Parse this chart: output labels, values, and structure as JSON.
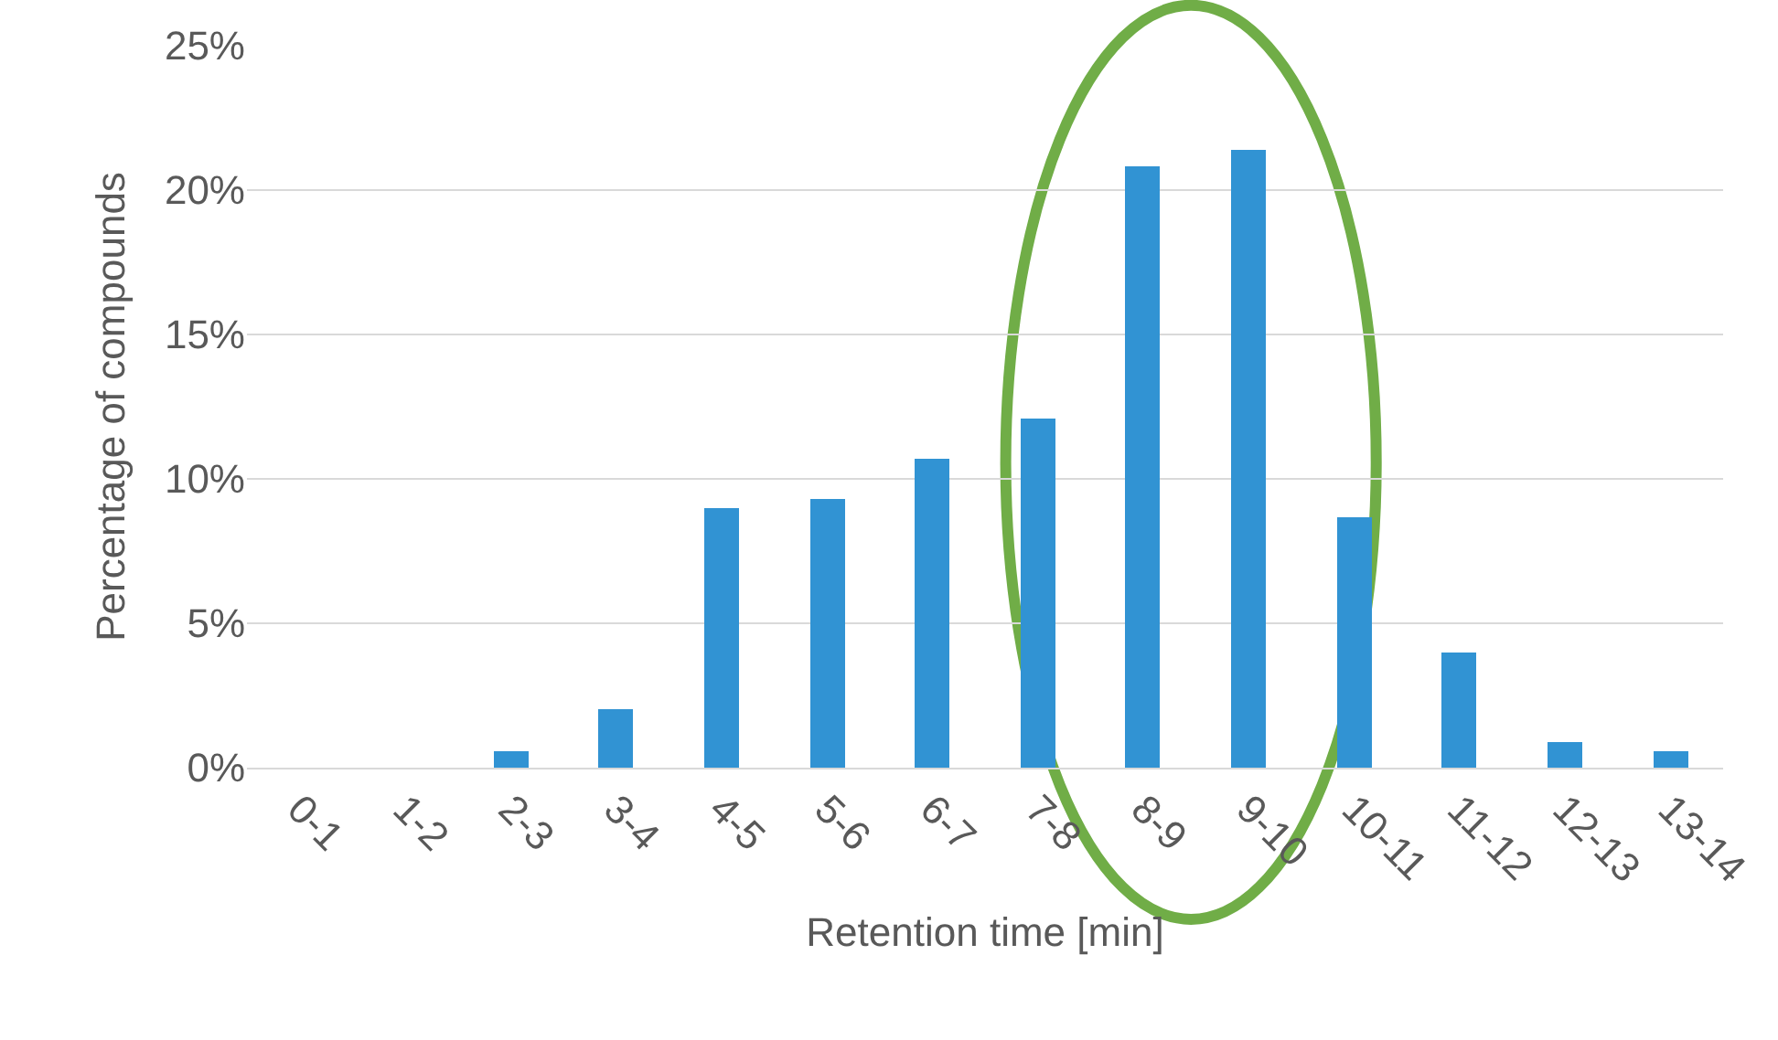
{
  "chart_data": {
    "type": "bar",
    "xlabel": "Retention time [min]",
    "ylabel": "Percentage of compounds",
    "categories": [
      "0-1",
      "1-2",
      "2-3",
      "3-4",
      "4-5",
      "5-6",
      "6-7",
      "7-8",
      "8-9",
      "9-10",
      "10-11",
      "11-12",
      "12-13",
      "13-14"
    ],
    "values": [
      0,
      0,
      0.6,
      2.0,
      9.0,
      9.3,
      10.7,
      12.1,
      20.8,
      21.4,
      8.7,
      4.0,
      0.9,
      0.6
    ],
    "color": "#3193d3",
    "ylim": [
      0,
      25
    ],
    "yticks": [
      {
        "value": 0,
        "label": "0%"
      },
      {
        "value": 5,
        "label": "5%"
      },
      {
        "value": 10,
        "label": "10%"
      },
      {
        "value": 15,
        "label": "15%"
      },
      {
        "value": 20,
        "label": "20%"
      },
      {
        "value": 25,
        "label": "25%"
      }
    ],
    "grid": "y"
  }
}
